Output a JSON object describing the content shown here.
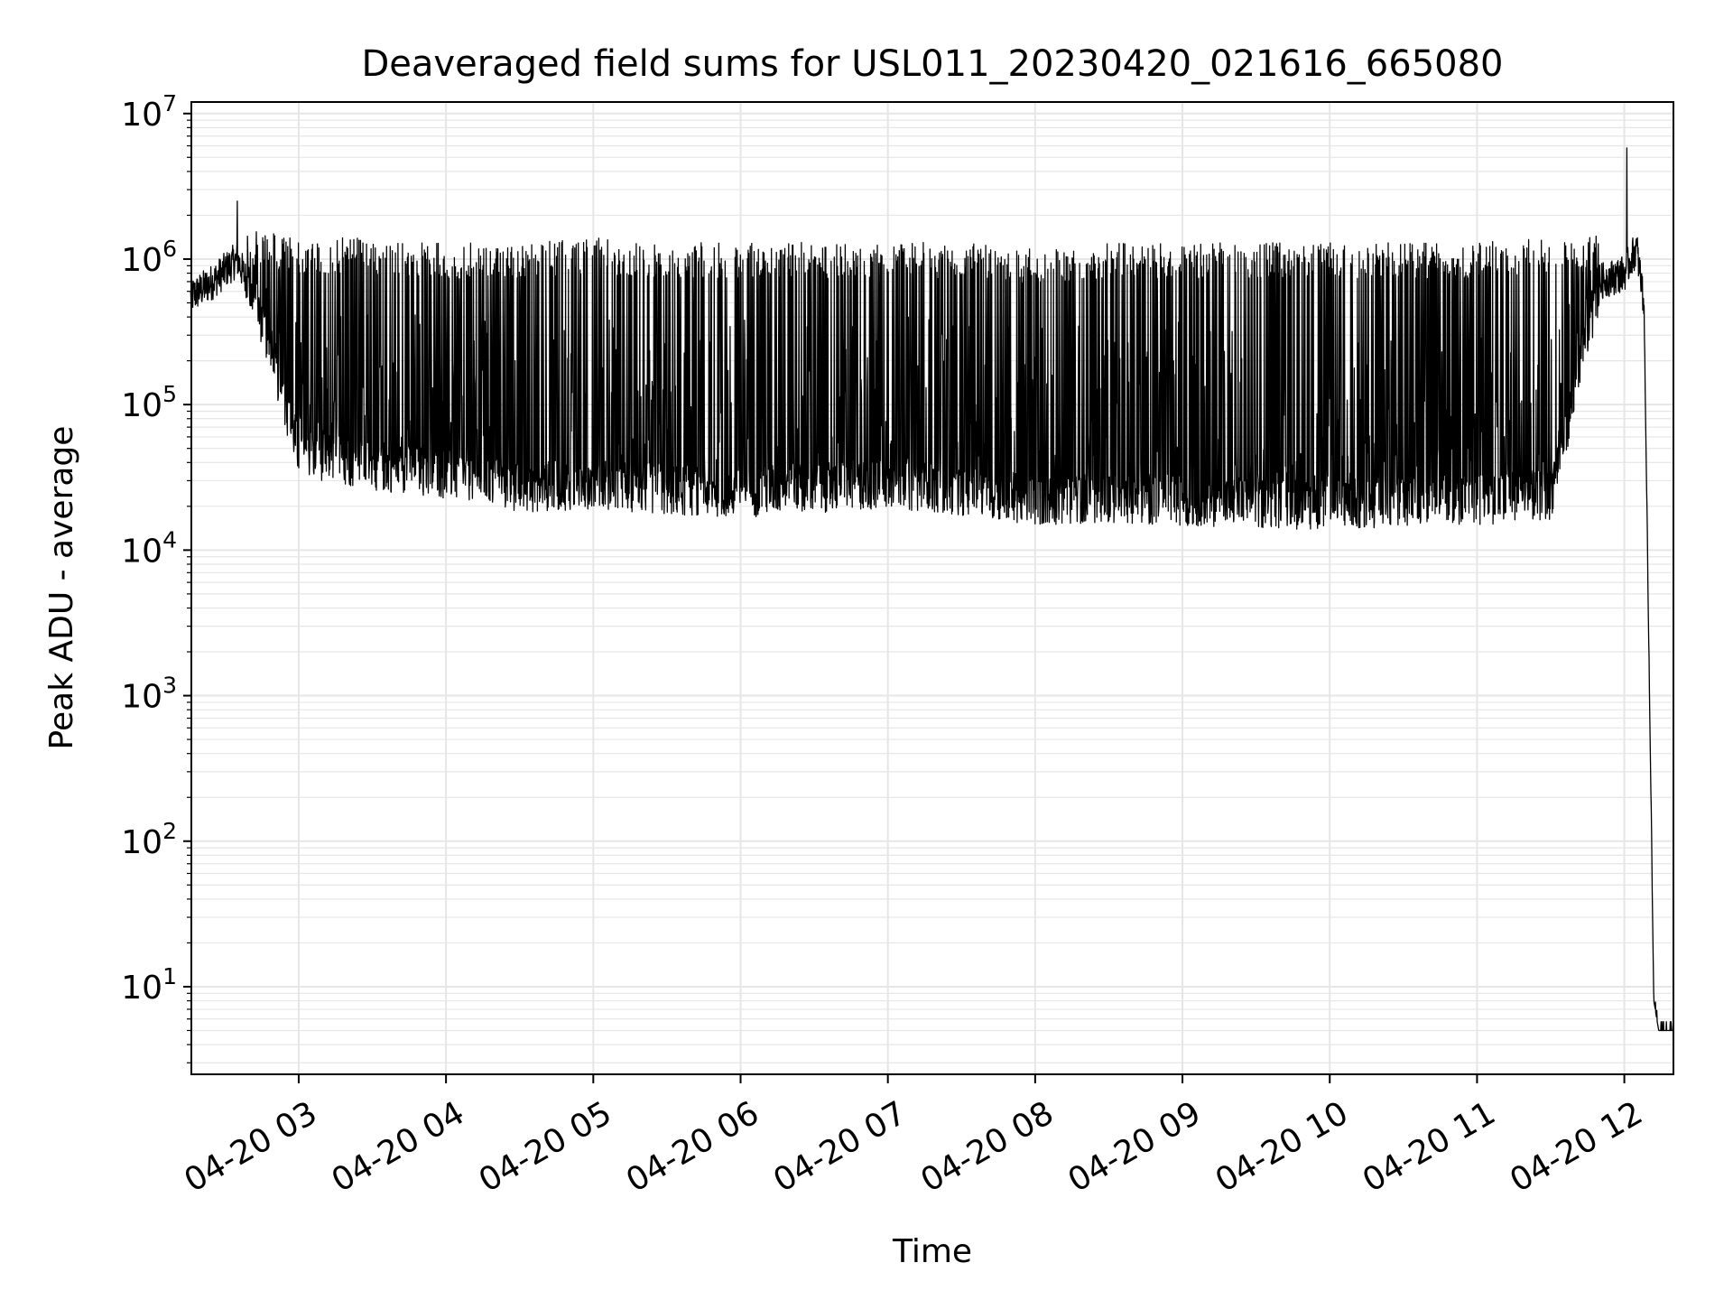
{
  "chart_data": {
    "type": "line",
    "title": "Deaveraged field sums for USL011_20230420_021616_665080",
    "xlabel": "Time",
    "ylabel": "Peak ADU - average",
    "yscale": "log",
    "ylim": [
      2.5,
      12000000
    ],
    "xlim": [
      "2023-04-20 02:16:16",
      "2023-04-20 12:20:00"
    ],
    "x_ticks": [
      "2023-04-20 03:00",
      "2023-04-20 04:00",
      "2023-04-20 05:00",
      "2023-04-20 06:00",
      "2023-04-20 07:00",
      "2023-04-20 08:00",
      "2023-04-20 09:00",
      "2023-04-20 10:00",
      "2023-04-20 11:00",
      "2023-04-20 12:00"
    ],
    "x_tick_labels": [
      "04-20 03",
      "04-20 04",
      "04-20 05",
      "04-20 06",
      "04-20 07",
      "04-20 08",
      "04-20 09",
      "04-20 10",
      "04-20 11",
      "04-20 12"
    ],
    "y_ticks": [
      10,
      100,
      1000,
      10000,
      100000,
      1000000,
      10000000
    ],
    "y_tick_labels": [
      {
        "base": "10",
        "exp": "1"
      },
      {
        "base": "10",
        "exp": "2"
      },
      {
        "base": "10",
        "exp": "3"
      },
      {
        "base": "10",
        "exp": "4"
      },
      {
        "base": "10",
        "exp": "5"
      },
      {
        "base": "10",
        "exp": "6"
      },
      {
        "base": "10",
        "exp": "7"
      }
    ],
    "grid": true,
    "line_color": "#000000",
    "grid_color": "#e6e6e6",
    "series": [
      {
        "x": [
          "2023-04-20 02:16",
          "2023-04-20 02:25",
          "2023-04-20 02:35",
          "2023-04-20 02:45",
          "2023-04-20 03:00",
          "2023-04-20 03:30",
          "2023-04-20 04:00",
          "2023-04-20 04:30",
          "2023-04-20 05:00",
          "2023-04-20 05:30",
          "2023-04-20 06:00",
          "2023-04-20 06:30",
          "2023-04-20 07:00",
          "2023-04-20 07:30",
          "2023-04-20 08:00",
          "2023-04-20 08:30",
          "2023-04-20 09:00",
          "2023-04-20 09:30",
          "2023-04-20 10:00",
          "2023-04-20 10:30",
          "2023-04-20 11:00",
          "2023-04-20 11:30",
          "2023-04-20 11:50",
          "2023-04-20 12:00",
          "2023-04-20 12:05",
          "2023-04-20 12:08",
          "2023-04-20 12:12",
          "2023-04-20 12:14",
          "2023-04-20 12:20"
        ],
        "baseline": [
          550000,
          700000,
          1000000,
          400000,
          50000,
          40000,
          35000,
          28000,
          30000,
          27000,
          26000,
          28000,
          30000,
          27000,
          23000,
          24000,
          23000,
          22000,
          21000,
          23000,
          23000,
          25000,
          700000,
          800000,
          1200000,
          500000,
          8,
          5,
          5
        ],
        "peaks": [
          700000,
          900000,
          1500000,
          1600000,
          1400000,
          1400000,
          1300000,
          1300000,
          1400000,
          1300000,
          1300000,
          1300000,
          1300000,
          1300000,
          1200000,
          1300000,
          1300000,
          1300000,
          1300000,
          1300000,
          1300000,
          1400000,
          1500000,
          1600000,
          1600000,
          1000000,
          8,
          6,
          6
        ],
        "max_spike": {
          "x": "2023-04-20 12:01",
          "y": 5800000
        },
        "early_spike": {
          "x": "2023-04-20 02:35",
          "y": 2500000
        }
      }
    ]
  }
}
